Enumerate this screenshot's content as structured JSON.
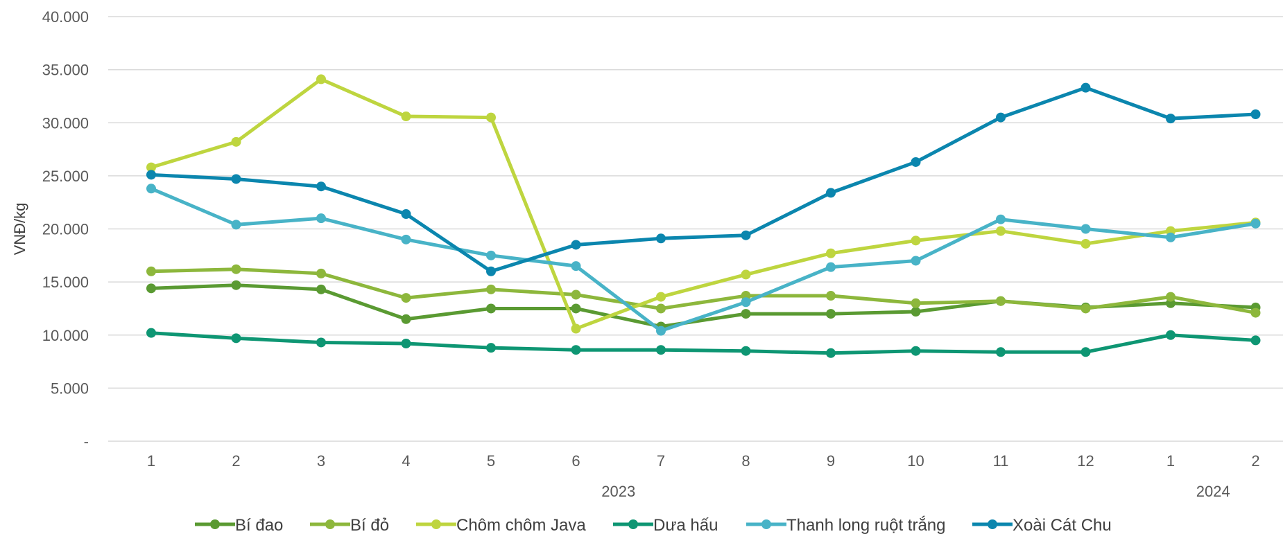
{
  "chart_data": {
    "type": "line",
    "ylabel": "VNĐ/kg",
    "ylim": [
      0,
      40000
    ],
    "y_ticks": [
      0,
      5000,
      10000,
      15000,
      20000,
      25000,
      30000,
      35000,
      40000
    ],
    "y_tick_labels": [
      "-",
      "5.000",
      "10.000",
      "15.000",
      "20.000",
      "25.000",
      "30.000",
      "35.000",
      "40.000"
    ],
    "categories": [
      "1",
      "2",
      "3",
      "4",
      "5",
      "6",
      "7",
      "8",
      "9",
      "10",
      "11",
      "12",
      "1",
      "2"
    ],
    "year_groups": [
      {
        "label": "2023",
        "from_index": 0,
        "to_index": 11
      },
      {
        "label": "2024",
        "from_index": 12,
        "to_index": 13
      }
    ],
    "grid": "horizontal",
    "legend_position": "bottom",
    "series": [
      {
        "name": "Bí đao",
        "color": "#5A9A32",
        "values": [
          14400,
          14700,
          14300,
          11500,
          12500,
          12500,
          10800,
          12000,
          12000,
          12200,
          13200,
          12600,
          13000,
          12600
        ]
      },
      {
        "name": "Bí đỏ",
        "color": "#8DB73C",
        "values": [
          16000,
          16200,
          15800,
          13500,
          14300,
          13800,
          12500,
          13700,
          13700,
          13000,
          13200,
          12500,
          13600,
          12100
        ]
      },
      {
        "name": "Chôm chôm Java",
        "color": "#BED53F",
        "values": [
          25800,
          28200,
          34100,
          30600,
          30500,
          10600,
          13600,
          15700,
          17700,
          18900,
          19800,
          18600,
          19800,
          20600
        ]
      },
      {
        "name": "Dưa hấu",
        "color": "#0E9673",
        "values": [
          10200,
          9700,
          9300,
          9200,
          8800,
          8600,
          8600,
          8500,
          8300,
          8500,
          8400,
          8400,
          10000,
          9500
        ]
      },
      {
        "name": "Thanh long ruột trắng",
        "color": "#48B3C7",
        "values": [
          23800,
          20400,
          21000,
          19000,
          17500,
          16500,
          10400,
          13100,
          16400,
          17000,
          20900,
          20000,
          19200,
          20500
        ]
      },
      {
        "name": "Xoài Cát Chu",
        "color": "#0B86AE",
        "values": [
          25100,
          24700,
          24000,
          21400,
          16000,
          18500,
          19100,
          19400,
          23400,
          26300,
          30500,
          33300,
          30400,
          30800
        ]
      }
    ]
  }
}
